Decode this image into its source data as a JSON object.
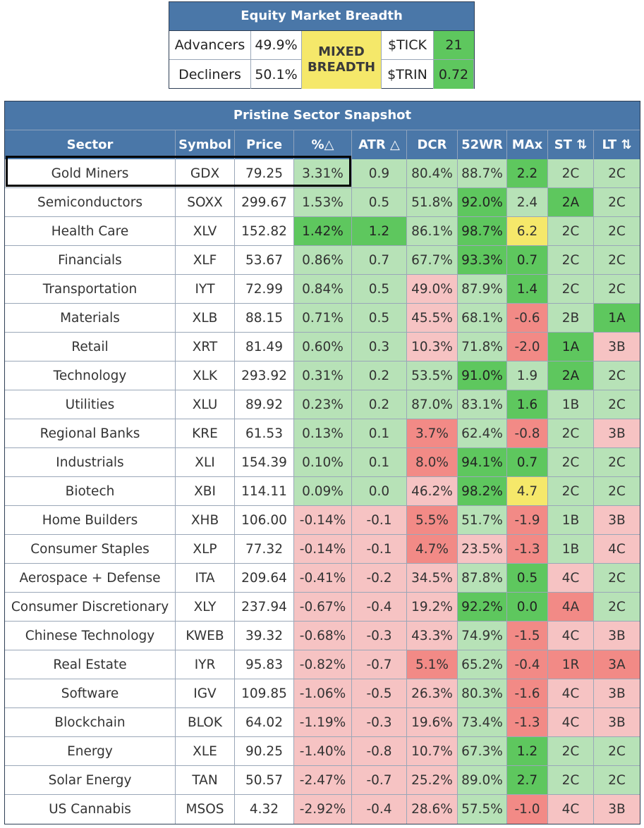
{
  "breadth": {
    "title": "Equity Market Breadth",
    "advancers_label": "Advancers",
    "advancers_value": "49.9%",
    "decliners_label": "Decliners",
    "decliners_value": "50.1%",
    "status_line1": "MIXED",
    "status_line2": "BREADTH",
    "tick_label": "$TICK",
    "tick_value": "21",
    "trin_label": "$TRIN",
    "trin_value": "0.72"
  },
  "sector": {
    "title": "Pristine Sector Snapshot",
    "headers": [
      "Sector",
      "Symbol",
      "Price",
      "%△",
      "ATR △",
      "DCR",
      "52WR",
      "MAx",
      "ST ⇅",
      "LT ⇅"
    ],
    "rows": [
      {
        "cells": [
          "Gold Miners",
          "GDX",
          "79.25",
          "3.31%",
          "0.9",
          "80.4%",
          "88.7%",
          "2.2",
          "2C",
          "2C"
        ],
        "colors": [
          "w",
          "w",
          "w",
          "lg",
          "lg",
          "lg",
          "lg",
          "g",
          "lg",
          "lg"
        ]
      },
      {
        "cells": [
          "Semiconductors",
          "SOXX",
          "299.67",
          "1.53%",
          "0.5",
          "51.8%",
          "92.0%",
          "2.4",
          "2A",
          "2C"
        ],
        "colors": [
          "w",
          "w",
          "w",
          "lg",
          "lg",
          "lg",
          "g",
          "lg",
          "g",
          "lg"
        ]
      },
      {
        "cells": [
          "Health Care",
          "XLV",
          "152.82",
          "1.42%",
          "1.2",
          "86.1%",
          "98.7%",
          "6.2",
          "2C",
          "2C"
        ],
        "colors": [
          "w",
          "w",
          "w",
          "g",
          "g",
          "lg",
          "g",
          "y",
          "lg",
          "lg"
        ]
      },
      {
        "cells": [
          "Financials",
          "XLF",
          "53.67",
          "0.86%",
          "0.7",
          "67.7%",
          "93.3%",
          "0.7",
          "2C",
          "2C"
        ],
        "colors": [
          "w",
          "w",
          "w",
          "lg",
          "lg",
          "lg",
          "g",
          "g",
          "lg",
          "lg"
        ]
      },
      {
        "cells": [
          "Transportation",
          "IYT",
          "72.99",
          "0.84%",
          "0.5",
          "49.0%",
          "87.9%",
          "1.4",
          "2C",
          "2C"
        ],
        "colors": [
          "w",
          "w",
          "w",
          "lg",
          "lg",
          "lr",
          "lg",
          "g",
          "lg",
          "lg"
        ]
      },
      {
        "cells": [
          "Materials",
          "XLB",
          "88.15",
          "0.71%",
          "0.5",
          "45.5%",
          "68.1%",
          "-0.6",
          "2B",
          "1A"
        ],
        "colors": [
          "w",
          "w",
          "w",
          "lg",
          "lg",
          "lr",
          "lg",
          "r",
          "lg",
          "g"
        ]
      },
      {
        "cells": [
          "Retail",
          "XRT",
          "81.49",
          "0.60%",
          "0.3",
          "10.3%",
          "71.8%",
          "-2.0",
          "1A",
          "3B"
        ],
        "colors": [
          "w",
          "w",
          "w",
          "lg",
          "lg",
          "lr",
          "lg",
          "r",
          "g",
          "lr"
        ]
      },
      {
        "cells": [
          "Technology",
          "XLK",
          "293.92",
          "0.31%",
          "0.2",
          "53.5%",
          "91.0%",
          "1.9",
          "2A",
          "2C"
        ],
        "colors": [
          "w",
          "w",
          "w",
          "lg",
          "lg",
          "lg",
          "g",
          "lg",
          "g",
          "lg"
        ]
      },
      {
        "cells": [
          "Utilities",
          "XLU",
          "89.92",
          "0.23%",
          "0.2",
          "87.0%",
          "83.1%",
          "1.6",
          "1B",
          "2C"
        ],
        "colors": [
          "w",
          "w",
          "w",
          "lg",
          "lg",
          "lg",
          "lg",
          "g",
          "lg",
          "lg"
        ]
      },
      {
        "cells": [
          "Regional Banks",
          "KRE",
          "61.53",
          "0.13%",
          "0.1",
          "3.7%",
          "62.4%",
          "-0.8",
          "2C",
          "3B"
        ],
        "colors": [
          "w",
          "w",
          "w",
          "lg",
          "lg",
          "r",
          "lg",
          "r",
          "lg",
          "lr"
        ]
      },
      {
        "cells": [
          "Industrials",
          "XLI",
          "154.39",
          "0.10%",
          "0.1",
          "8.0%",
          "94.1%",
          "0.7",
          "2C",
          "2C"
        ],
        "colors": [
          "w",
          "w",
          "w",
          "lg",
          "lg",
          "r",
          "g",
          "g",
          "lg",
          "lg"
        ]
      },
      {
        "cells": [
          "Biotech",
          "XBI",
          "114.11",
          "0.09%",
          "0.0",
          "46.2%",
          "98.2%",
          "4.7",
          "2C",
          "2C"
        ],
        "colors": [
          "w",
          "w",
          "w",
          "lg",
          "lg",
          "lr",
          "g",
          "y",
          "lg",
          "lg"
        ]
      },
      {
        "cells": [
          "Home Builders",
          "XHB",
          "106.00",
          "-0.14%",
          "-0.1",
          "5.5%",
          "51.7%",
          "-1.9",
          "1B",
          "3B"
        ],
        "colors": [
          "w",
          "w",
          "w",
          "lr",
          "lr",
          "r",
          "lg",
          "r",
          "lg",
          "lr"
        ]
      },
      {
        "cells": [
          "Consumer Staples",
          "XLP",
          "77.32",
          "-0.14%",
          "-0.1",
          "4.7%",
          "23.5%",
          "-1.3",
          "1B",
          "4C"
        ],
        "colors": [
          "w",
          "w",
          "w",
          "lr",
          "lr",
          "r",
          "lr",
          "r",
          "lg",
          "lr"
        ]
      },
      {
        "cells": [
          "Aerospace + Defense",
          "ITA",
          "209.64",
          "-0.41%",
          "-0.2",
          "34.5%",
          "87.8%",
          "0.5",
          "4C",
          "2C"
        ],
        "colors": [
          "w",
          "w",
          "w",
          "lr",
          "lr",
          "lr",
          "lg",
          "g",
          "lr",
          "lg"
        ]
      },
      {
        "cells": [
          "Consumer Discretionary",
          "XLY",
          "237.94",
          "-0.67%",
          "-0.4",
          "19.2%",
          "92.2%",
          "0.0",
          "4A",
          "2C"
        ],
        "colors": [
          "w",
          "w",
          "w",
          "lr",
          "lr",
          "lr",
          "g",
          "g",
          "r",
          "lg"
        ]
      },
      {
        "cells": [
          "Chinese Technology",
          "KWEB",
          "39.32",
          "-0.68%",
          "-0.3",
          "43.3%",
          "74.9%",
          "-1.5",
          "4C",
          "3B"
        ],
        "colors": [
          "w",
          "w",
          "w",
          "lr",
          "lr",
          "lr",
          "lg",
          "r",
          "lr",
          "lr"
        ]
      },
      {
        "cells": [
          "Real Estate",
          "IYR",
          "95.83",
          "-0.82%",
          "-0.7",
          "5.1%",
          "65.2%",
          "-0.4",
          "1R",
          "3A"
        ],
        "colors": [
          "w",
          "w",
          "w",
          "lr",
          "lr",
          "r",
          "lg",
          "r",
          "r",
          "r"
        ]
      },
      {
        "cells": [
          "Software",
          "IGV",
          "109.85",
          "-1.06%",
          "-0.5",
          "26.3%",
          "80.3%",
          "-1.6",
          "4C",
          "3B"
        ],
        "colors": [
          "w",
          "w",
          "w",
          "lr",
          "lr",
          "lr",
          "lg",
          "r",
          "lr",
          "lr"
        ]
      },
      {
        "cells": [
          "Blockchain",
          "BLOK",
          "64.02",
          "-1.19%",
          "-0.3",
          "19.6%",
          "73.4%",
          "-1.3",
          "4C",
          "3B"
        ],
        "colors": [
          "w",
          "w",
          "w",
          "lr",
          "lr",
          "lr",
          "lg",
          "r",
          "lr",
          "lr"
        ]
      },
      {
        "cells": [
          "Energy",
          "XLE",
          "90.25",
          "-1.40%",
          "-0.8",
          "10.7%",
          "67.3%",
          "1.2",
          "2C",
          "2C"
        ],
        "colors": [
          "w",
          "w",
          "w",
          "lr",
          "lr",
          "lr",
          "lg",
          "g",
          "lg",
          "lg"
        ]
      },
      {
        "cells": [
          "Solar Energy",
          "TAN",
          "50.57",
          "-2.47%",
          "-0.7",
          "25.2%",
          "89.0%",
          "2.7",
          "2C",
          "2C"
        ],
        "colors": [
          "w",
          "w",
          "w",
          "lr",
          "lr",
          "lr",
          "lg",
          "g",
          "lg",
          "lg"
        ]
      },
      {
        "cells": [
          "US Cannabis",
          "MSOS",
          "4.32",
          "-2.92%",
          "-0.4",
          "28.6%",
          "57.5%",
          "-1.0",
          "4C",
          "3B"
        ],
        "colors": [
          "w",
          "w",
          "w",
          "lr",
          "lr",
          "lr",
          "lg",
          "r",
          "lr",
          "lr"
        ]
      }
    ]
  }
}
